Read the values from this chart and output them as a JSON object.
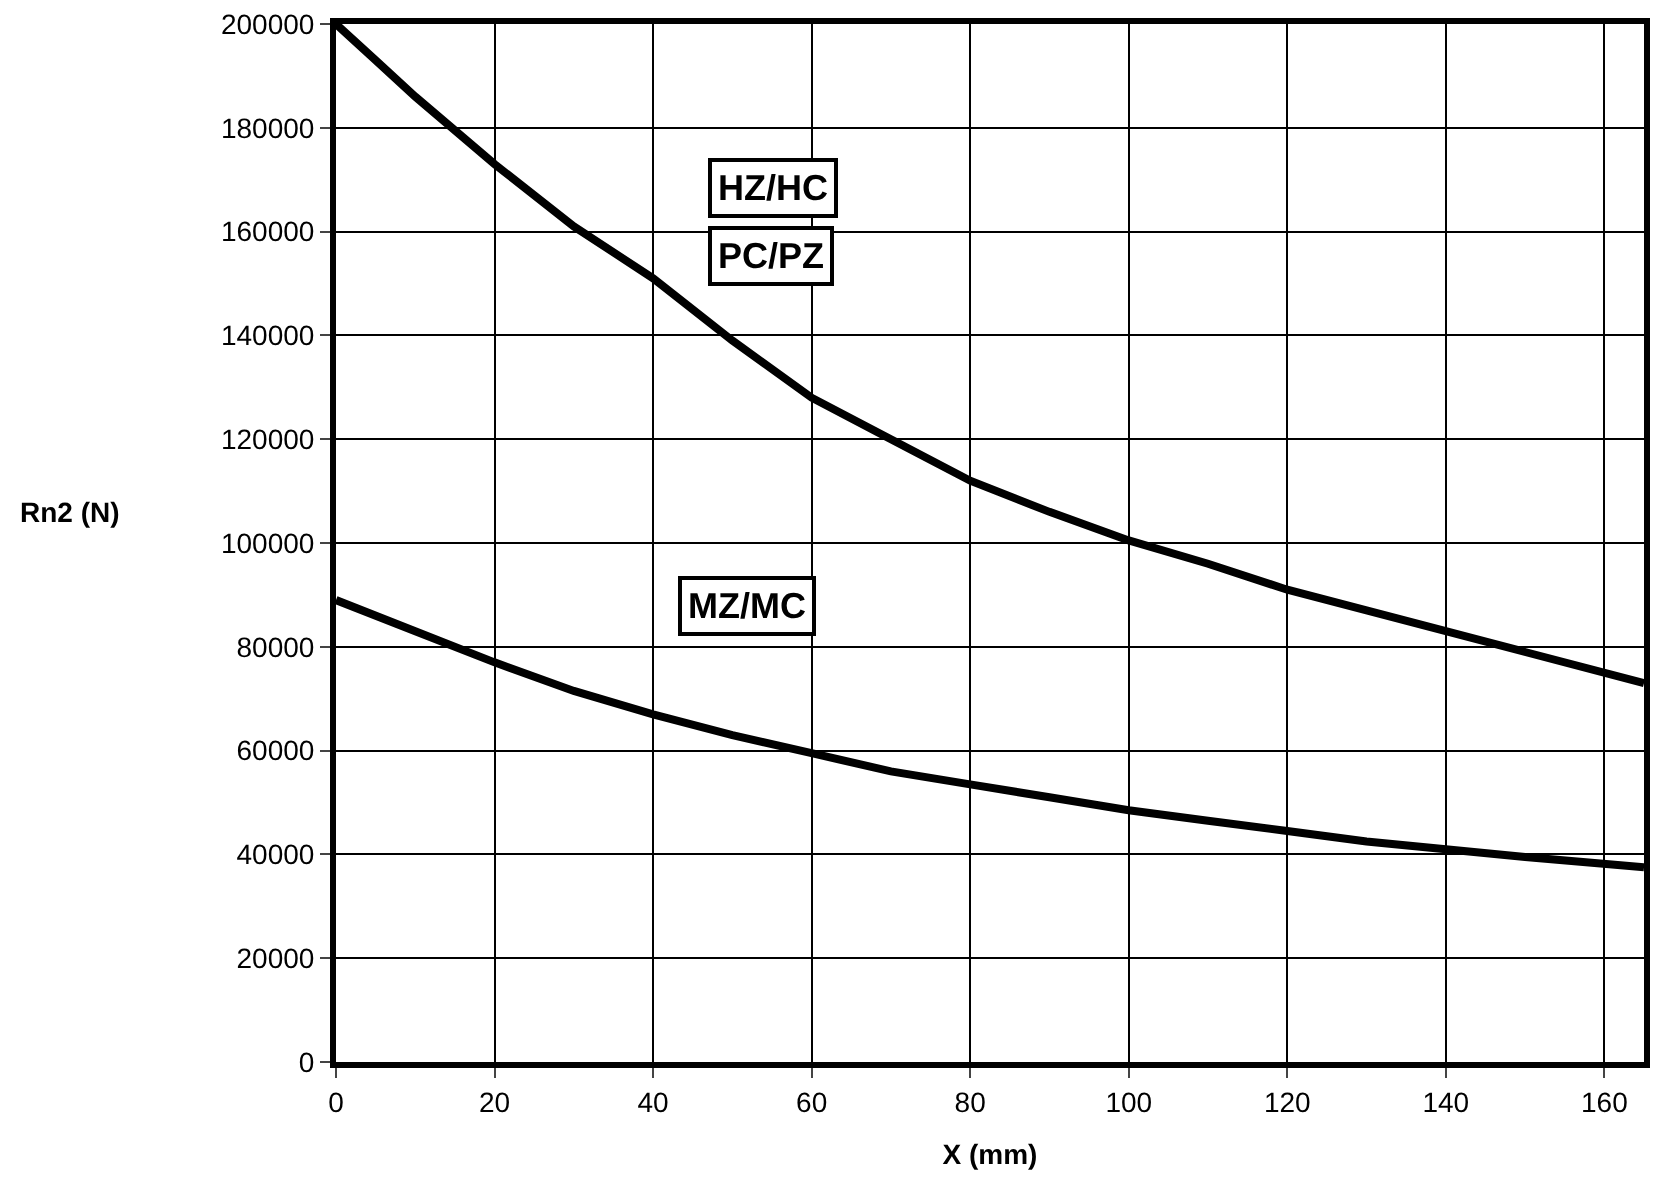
{
  "chart_data": {
    "type": "line",
    "xlabel": "X (mm)",
    "ylabel": "Rn2 (N)",
    "xlim": [
      0,
      165
    ],
    "xticks": [
      0,
      20,
      40,
      60,
      80,
      100,
      120,
      140,
      160
    ],
    "ylim": [
      0,
      200000
    ],
    "yticks": [
      0,
      20000,
      40000,
      60000,
      80000,
      100000,
      120000,
      140000,
      160000,
      180000,
      200000
    ],
    "grid": true,
    "legend": false,
    "marker": "none",
    "line_style": "solid",
    "annotations": [
      "HZ/HC",
      "PC/PZ",
      "MZ/MC"
    ],
    "series": [
      {
        "color": "#000000",
        "x": [
          0,
          5,
          10,
          20,
          30,
          40,
          50,
          60,
          70,
          80,
          90,
          100,
          110,
          120,
          130,
          140,
          150,
          165
        ],
        "values": [
          200000,
          193000,
          186000,
          173000,
          161000,
          151000,
          139000,
          128000,
          120000,
          112000,
          106000,
          100500,
          96000,
          91000,
          87000,
          83000,
          79000,
          73000
        ]
      },
      {
        "color": "#000000",
        "x": [
          0,
          10,
          20,
          30,
          40,
          50,
          60,
          70,
          80,
          90,
          100,
          110,
          120,
          130,
          140,
          150,
          165
        ],
        "values": [
          89000,
          83000,
          77000,
          71500,
          67000,
          63000,
          59500,
          56000,
          53500,
          51000,
          48500,
          46500,
          44500,
          42500,
          41000,
          39500,
          37500
        ]
      }
    ]
  }
}
